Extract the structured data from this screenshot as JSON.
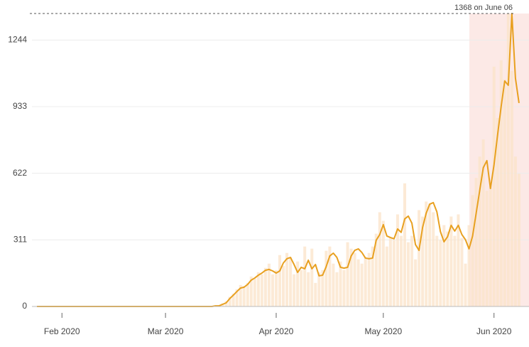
{
  "chart_data": {
    "type": "bar",
    "annotation": "1368 on June 06",
    "max_line": 1368,
    "x": [
      25,
      26,
      27,
      28,
      29,
      30,
      31,
      32,
      33,
      34,
      35,
      36,
      37,
      38,
      39,
      40,
      41,
      42,
      43,
      44,
      45,
      46,
      47,
      48,
      49,
      50,
      51,
      52,
      53,
      54,
      55,
      56,
      57,
      58,
      59,
      60,
      61,
      62,
      63,
      64,
      65,
      66,
      67,
      68,
      69,
      70,
      71,
      72,
      73,
      74,
      75,
      76,
      77,
      78,
      79,
      80,
      81,
      82,
      83,
      84,
      85,
      86,
      87,
      88,
      89,
      90,
      91,
      92,
      93,
      94,
      95,
      96,
      97,
      98,
      99,
      100,
      101,
      102,
      103,
      104,
      105,
      106,
      107,
      108,
      109,
      110,
      111,
      112,
      113,
      114,
      115,
      116,
      117,
      118,
      119,
      120,
      121,
      122,
      123,
      124,
      125,
      126,
      127,
      128,
      129,
      130,
      131,
      132,
      133,
      134,
      135,
      136,
      137,
      138,
      139,
      140,
      141,
      142,
      143,
      144,
      145,
      146,
      147,
      148,
      149,
      150,
      151,
      152,
      153,
      154,
      155,
      156,
      157,
      158,
      159,
      160
    ],
    "series": [
      {
        "type": "bar",
        "color": "#fbe3c8",
        "values": [
          0,
          0,
          0,
          0,
          0,
          0,
          0,
          0,
          0,
          0,
          0,
          0,
          0,
          0,
          0,
          0,
          0,
          0,
          0,
          0,
          0,
          0,
          0,
          0,
          0,
          0,
          0,
          0,
          0,
          0,
          0,
          0,
          0,
          0,
          0,
          0,
          0,
          0,
          0,
          0,
          0,
          0,
          0,
          0,
          0,
          0,
          0,
          0,
          0,
          0,
          5,
          6,
          15,
          25,
          45,
          60,
          80,
          100,
          95,
          110,
          140,
          130,
          160,
          150,
          180,
          200,
          150,
          170,
          240,
          190,
          250,
          230,
          150,
          210,
          170,
          280,
          160,
          270,
          110,
          160,
          170,
          260,
          280,
          200,
          160,
          210,
          170,
          300,
          270,
          250,
          220,
          200,
          230,
          250,
          280,
          340,
          440,
          400,
          280,
          320,
          310,
          430,
          330,
          575,
          300,
          330,
          220,
          450,
          420,
          490,
          480,
          440,
          330,
          310,
          380,
          350,
          420,
          330,
          430,
          320,
          200,
          380,
          520,
          600,
          700,
          780,
          540,
          560,
          1120,
          880,
          1150,
          1060,
          1368,
          1100,
          700,
          620
        ]
      },
      {
        "type": "line",
        "color": "#e8a020",
        "values": [
          0,
          0,
          0,
          0,
          0,
          0,
          0,
          0,
          0,
          0,
          0,
          0,
          0,
          0,
          0,
          0,
          0,
          0,
          0,
          0,
          0,
          0,
          0,
          0,
          0,
          0,
          0,
          0,
          0,
          0,
          0,
          0,
          0,
          0,
          0,
          0,
          0,
          0,
          0,
          0,
          0,
          0,
          0,
          0,
          0,
          0,
          0,
          0,
          0,
          0,
          3,
          3,
          10,
          17,
          37,
          53,
          70,
          86,
          90,
          103,
          123,
          133,
          146,
          156,
          169,
          173,
          166,
          156,
          166,
          203,
          223,
          229,
          196,
          159,
          183,
          176,
          216,
          176,
          196,
          143,
          146,
          186,
          236,
          249,
          229,
          183,
          179,
          183,
          236,
          262,
          269,
          252,
          226,
          223,
          226,
          309,
          336,
          382,
          329,
          322,
          316,
          362,
          346,
          409,
          422,
          389,
          289,
          262,
          369,
          435,
          478,
          485,
          442,
          349,
          302,
          326,
          379,
          352,
          379,
          336,
          312,
          269,
          329,
          435,
          542,
          648,
          681,
          551,
          661,
          801,
          934,
          1053,
          1033,
          1368,
          1066,
          950
        ]
      }
    ],
    "shaded_x": [
      146.1,
      162.8
    ],
    "xlim": [
      23.6,
      162.8
    ],
    "xticks": [
      {
        "value": 32,
        "label": "Feb 2020"
      },
      {
        "value": 61,
        "label": "Mar 2020"
      },
      {
        "value": 92,
        "label": "Apr 2020"
      },
      {
        "value": 122,
        "label": "May 2020"
      },
      {
        "value": 153,
        "label": "Jun 2020"
      }
    ],
    "ylim": [
      0,
      1368
    ],
    "yticks": [
      0,
      311,
      622,
      933,
      1244
    ],
    "grid": true
  }
}
